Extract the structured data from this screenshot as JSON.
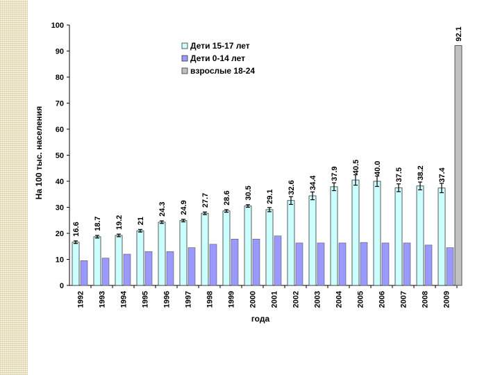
{
  "chart_data": {
    "type": "bar",
    "title": "",
    "xlabel": "года",
    "ylabel": "На 100 тыс. населения",
    "ylim": [
      0,
      100
    ],
    "yticks": [
      0,
      10,
      20,
      30,
      40,
      50,
      60,
      70,
      80,
      90,
      100
    ],
    "categories": [
      "1992",
      "1993",
      "1994",
      "1995",
      "1996",
      "1997",
      "1998",
      "1999",
      "2000",
      "2001",
      "2002",
      "2003",
      "2004",
      "2005",
      "2006",
      "2007",
      "2008",
      "2009"
    ],
    "series": [
      {
        "name": "Дети 15-17 лет",
        "color": "#ccffff",
        "values": [
          16.6,
          18.7,
          19.2,
          21,
          24.3,
          24.9,
          27.7,
          28.6,
          30.5,
          29.1,
          32.6,
          34.4,
          37.9,
          40.5,
          40.0,
          37.5,
          38.2,
          37.4
        ],
        "labels": [
          "16.6",
          "18.7",
          "19.2",
          "21",
          "24.3",
          "24.9",
          "27.7",
          "28.6",
          "30.5",
          "29.1",
          "32.6",
          "34.4",
          "37.9",
          "40.5",
          "40.0",
          "37.5",
          "38.2",
          "37.4"
        ]
      },
      {
        "name": "Дети 0-14 лет",
        "color": "#9999ff",
        "values": [
          9.5,
          10.5,
          12,
          13,
          13,
          14.5,
          15.8,
          17.8,
          17.8,
          19,
          16.3,
          16.3,
          16.3,
          16.5,
          16.3,
          16.3,
          15.5,
          14.5
        ]
      },
      {
        "name": "взрослые 18-24",
        "color": "#c0c0c0",
        "values": [
          null,
          null,
          null,
          null,
          null,
          null,
          null,
          null,
          null,
          null,
          null,
          null,
          null,
          null,
          null,
          null,
          null,
          92.1
        ],
        "labels": [
          "",
          "",
          "",
          "",
          "",
          "",
          "",
          "",
          "",
          "",
          "",
          "",
          "",
          "",
          "",
          "",
          "",
          "92.1"
        ]
      }
    ],
    "legend_position": "top-center",
    "error_bars": [
      0.5,
      0.5,
      0.5,
      0.5,
      0.5,
      0.5,
      0.5,
      0.5,
      0.5,
      0.8,
      1.5,
      1.5,
      1.5,
      2.0,
      2.0,
      1.5,
      1.5,
      1.8
    ]
  }
}
